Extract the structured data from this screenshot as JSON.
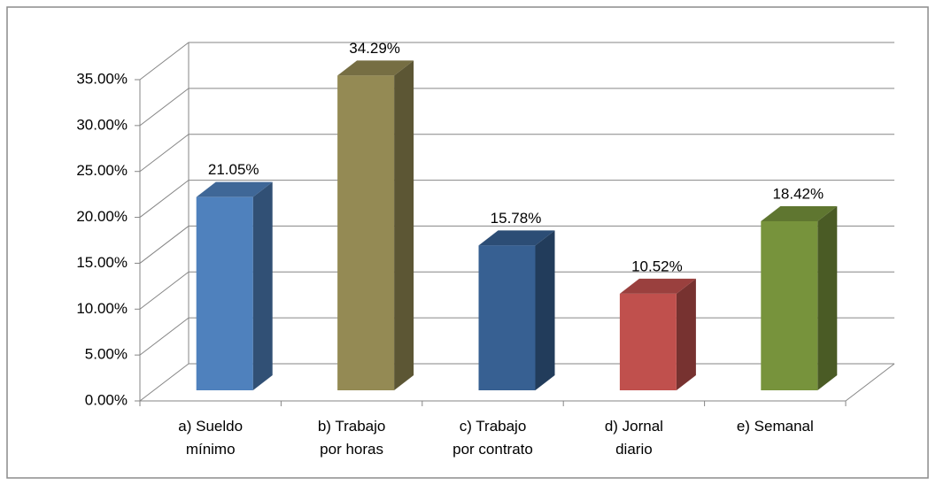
{
  "chart_data": {
    "type": "bar3d",
    "categories": [
      "a) Sueldo mínimo",
      "b) Trabajo por horas",
      "c) Trabajo por contrato",
      "d) Jornal diario",
      "e) Semanal"
    ],
    "values": [
      21.05,
      34.29,
      15.78,
      10.52,
      18.42
    ],
    "value_labels": [
      "21.05%",
      "34.29%",
      "15.78%",
      "10.52%",
      "18.42%"
    ],
    "colors": [
      "#4f81bd",
      "#948a54",
      "#376092",
      "#c0504d",
      "#77933c"
    ],
    "ylim": [
      0,
      35
    ],
    "yticks": [
      {
        "value": 0,
        "label": "0.00%"
      },
      {
        "value": 5,
        "label": "5.00%"
      },
      {
        "value": 10,
        "label": "10.00%"
      },
      {
        "value": 15,
        "label": "15.00%"
      },
      {
        "value": 20,
        "label": "20.00%"
      },
      {
        "value": 25,
        "label": "25.00%"
      },
      {
        "value": 30,
        "label": "30.00%"
      },
      {
        "value": 35,
        "label": "35.00%"
      }
    ],
    "grid": true
  }
}
